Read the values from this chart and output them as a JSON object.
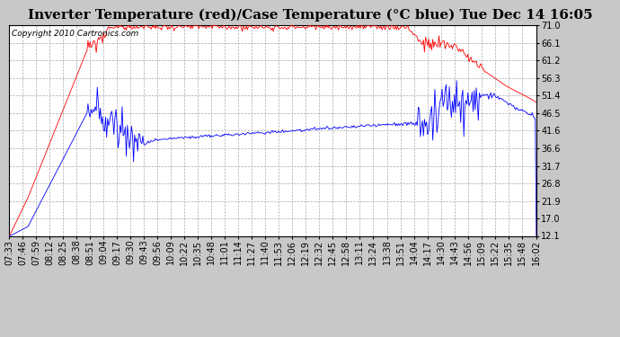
{
  "title": "Inverter Temperature (red)/Case Temperature (°C blue) Tue Dec 14 16:05",
  "copyright": "Copyright 2010 Cartronics.com",
  "y_ticks": [
    12.1,
    17.0,
    21.9,
    26.8,
    31.7,
    36.6,
    41.6,
    46.5,
    51.4,
    56.3,
    61.2,
    66.1,
    71.0
  ],
  "y_min": 12.1,
  "y_max": 71.0,
  "x_labels": [
    "07:33",
    "07:46",
    "07:59",
    "08:12",
    "08:25",
    "08:38",
    "08:51",
    "09:04",
    "09:17",
    "09:30",
    "09:43",
    "09:56",
    "10:09",
    "10:22",
    "10:35",
    "10:48",
    "11:01",
    "11:14",
    "11:27",
    "11:40",
    "11:53",
    "12:06",
    "12:19",
    "12:32",
    "12:45",
    "12:58",
    "13:11",
    "13:24",
    "13:38",
    "13:51",
    "14:04",
    "14:17",
    "14:30",
    "14:43",
    "14:56",
    "15:09",
    "15:22",
    "15:35",
    "15:48",
    "16:02"
  ],
  "outer_bg_color": "#c8c8c8",
  "plot_bg_color": "#ffffff",
  "grid_color": "#aaaaaa",
  "red_color": "#ff0000",
  "blue_color": "#0000ff",
  "title_fontsize": 11,
  "copyright_fontsize": 6.5,
  "tick_fontsize": 7,
  "figsize": [
    6.9,
    3.75
  ],
  "dpi": 100
}
